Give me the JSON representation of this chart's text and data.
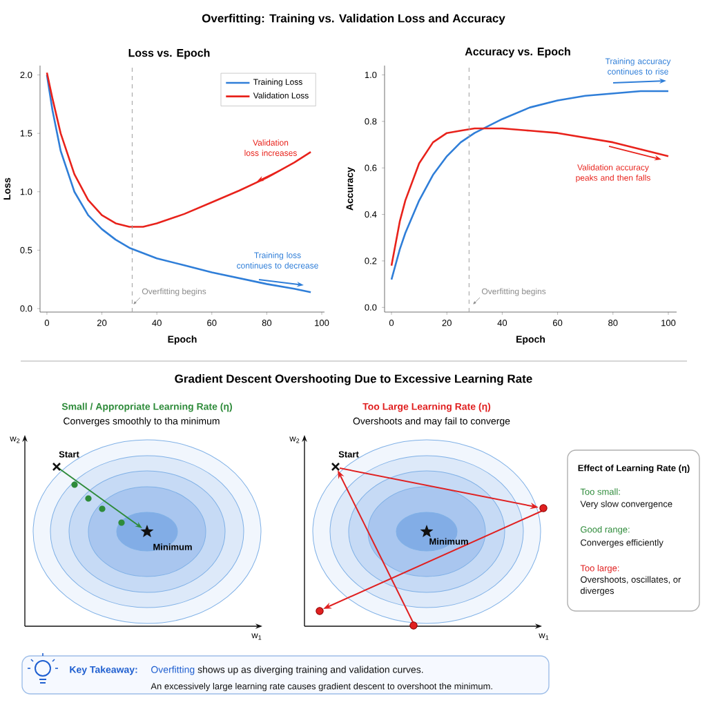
{
  "chart_data": [
    {
      "type": "line",
      "title": "Overfitting: Training vs. Validation Loss and Accuracy",
      "subtitle": "Loss vs. Epoch",
      "xlabel": "Epoch",
      "ylabel": "Loss",
      "xlim": [
        -2.5,
        101
      ],
      "ylim": [
        -0.03,
        2.08
      ],
      "xticks": [
        0,
        20,
        40,
        60,
        80,
        100
      ],
      "yticks": [
        {
          "value": 0,
          "label": "0.0"
        },
        {
          "value": 0.5,
          "label": "0.5"
        },
        {
          "value": 1,
          "label": "1.0"
        },
        {
          "value": 1.5,
          "label": "1.5"
        },
        {
          "value": 2,
          "label": "2.0"
        }
      ],
      "legend": "top right",
      "series": [
        {
          "name": "Training Loss",
          "color": "#2f7ed8",
          "x": [
            0,
            2,
            5,
            10,
            15,
            20,
            25,
            30,
            40,
            50,
            60,
            70,
            80,
            90,
            96
          ],
          "values": [
            2.0,
            1.7,
            1.35,
            1.0,
            0.8,
            0.68,
            0.59,
            0.52,
            0.43,
            0.37,
            0.31,
            0.26,
            0.21,
            0.17,
            0.14
          ]
        },
        {
          "name": "Validation Loss",
          "color": "#e8221b",
          "x": [
            0,
            2,
            5,
            10,
            15,
            20,
            25,
            30,
            35,
            40,
            50,
            60,
            70,
            80,
            90,
            96
          ],
          "values": [
            2.02,
            1.8,
            1.5,
            1.15,
            0.93,
            0.8,
            0.73,
            0.7,
            0.7,
            0.73,
            0.81,
            0.91,
            1.01,
            1.12,
            1.25,
            1.34
          ]
        }
      ],
      "ref_lines": [
        {
          "axis": "x",
          "value": 31,
          "label": "Overfitting begins",
          "color": "#a0a0a0",
          "line_style": "dashed"
        }
      ],
      "annotations": [
        "Validation loss increases",
        "Training loss continues to decrease"
      ]
    },
    {
      "type": "line",
      "title": "Accuracy vs. Epoch",
      "xlabel": "Epoch",
      "ylabel": "Accuracy",
      "xlim": [
        -2.5,
        103
      ],
      "ylim": [
        -0.02,
        1.04
      ],
      "xticks": [
        0,
        20,
        40,
        60,
        80,
        100
      ],
      "yticks": [
        {
          "value": 0,
          "label": "0.0"
        },
        {
          "value": 0.2,
          "label": "0.2"
        },
        {
          "value": 0.4,
          "label": "0.4"
        },
        {
          "value": 0.6,
          "label": "0.6"
        },
        {
          "value": 0.8,
          "label": "0.8"
        },
        {
          "value": 1,
          "label": "1.0"
        }
      ],
      "series": [
        {
          "color": "#2f7ed8",
          "x": [
            0,
            3,
            5,
            10,
            15,
            20,
            25,
            30,
            40,
            50,
            60,
            70,
            80,
            90,
            100
          ],
          "values": [
            0.12,
            0.25,
            0.32,
            0.46,
            0.57,
            0.65,
            0.71,
            0.75,
            0.81,
            0.86,
            0.89,
            0.91,
            0.92,
            0.93,
            0.93
          ]
        },
        {
          "color": "#e8221b",
          "x": [
            0,
            3,
            5,
            10,
            15,
            20,
            25,
            30,
            40,
            50,
            60,
            70,
            80,
            90,
            100
          ],
          "values": [
            0.18,
            0.37,
            0.46,
            0.62,
            0.71,
            0.75,
            0.76,
            0.77,
            0.77,
            0.76,
            0.75,
            0.73,
            0.71,
            0.68,
            0.65
          ]
        }
      ],
      "ref_lines": [
        {
          "axis": "x",
          "value": 28,
          "label": "Overfitting begins",
          "color": "#a0a0a0",
          "line_style": "dashed"
        }
      ],
      "annotations": [
        "Training accuracy continues to rise",
        "Validation accuracy peaks and then falls"
      ]
    },
    {
      "type": "other",
      "title": "Gradient Descent Overshooting Due to Excessive Learning Rate",
      "subtitle": "Small / Appropriate Learning Rate (η)",
      "xlabel": "w$_{1}$",
      "ylabel": "w$_{2}$",
      "annotations": [
        "Converges smoothly to tha minimum",
        "Start",
        "Minimum"
      ]
    },
    {
      "type": "other",
      "subtitle": "Too Large Learning Rate (η)",
      "xlabel": "w$_{1}$",
      "ylabel": "w$_{2}$",
      "annotations": [
        "Overshoots and may fail to converge",
        "Start",
        "Minimum"
      ]
    },
    {
      "type": "other",
      "title": "Effect of Learning Rate (η)",
      "annotations": [
        "Too small:",
        "Very slow convergence",
        "Good range:",
        "Converges efficiently",
        "Too large:",
        "Overshoots, oscillates, or diverges"
      ]
    },
    {
      "type": "other",
      "annotations": [
        "Key Takeaway:",
        "Overfitting",
        "shows up as diverging training and validation curves.",
        "An excessively large learning rate causes gradient descent to overshoot the minimum."
      ]
    }
  ]
}
